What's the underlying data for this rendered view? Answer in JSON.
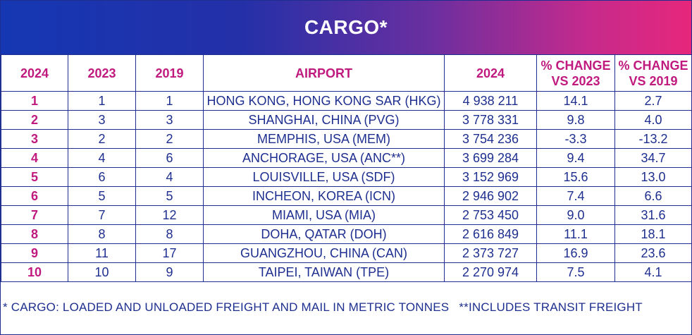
{
  "title": "CARGO*",
  "headers": [
    "2024",
    "2023",
    "2019",
    "AIRPORT",
    "2024",
    "% CHANGE VS 2023",
    "% CHANGE VS 2019"
  ],
  "rows": [
    [
      "1",
      "1",
      "1",
      "HONG KONG, HONG KONG SAR (HKG)",
      "4 938 211",
      "14.1",
      "2.7"
    ],
    [
      "2",
      "3",
      "3",
      "SHANGHAI, CHINA (PVG)",
      "3 778 331",
      "9.8",
      "4.0"
    ],
    [
      "3",
      "2",
      "2",
      "MEMPHIS, USA (MEM)",
      "3 754 236",
      "-3.3",
      "-13.2"
    ],
    [
      "4",
      "4",
      "6",
      "ANCHORAGE, USA (ANC**)",
      "3 699 284",
      "9.4",
      "34.7"
    ],
    [
      "5",
      "6",
      "4",
      "LOUISVILLE, USA (SDF)",
      "3 152 969",
      "15.6",
      "13.0"
    ],
    [
      "6",
      "5",
      "5",
      "INCHEON, KOREA (ICN)",
      "2 946 902",
      "7.4",
      "6.6"
    ],
    [
      "7",
      "7",
      "12",
      "MIAMI, USA (MIA)",
      "2 753 450",
      "9.0",
      "31.6"
    ],
    [
      "8",
      "8",
      "8",
      "DOHA, QATAR (DOH)",
      "2 616 849",
      "11.1",
      "18.1"
    ],
    [
      "9",
      "11",
      "17",
      "GUANGZHOU, CHINA (CAN)",
      "2 373 727",
      "16.9",
      "23.6"
    ],
    [
      "10",
      "10",
      "9",
      "TAIPEI, TAIWAN (TPE)",
      "2 270 974",
      "7.5",
      "4.1"
    ]
  ],
  "footnote_1": "* CARGO: LOADED AND UNLOADED FREIGHT AND MAIL IN METRIC TONNES",
  "footnote_2": "**INCLUDES TRANSIT FREIGHT",
  "colors": {
    "navy": "#1e2f8f",
    "magenta": "#c01a7f",
    "gradient_start": "#1537b3",
    "gradient_end": "#e6277c"
  }
}
